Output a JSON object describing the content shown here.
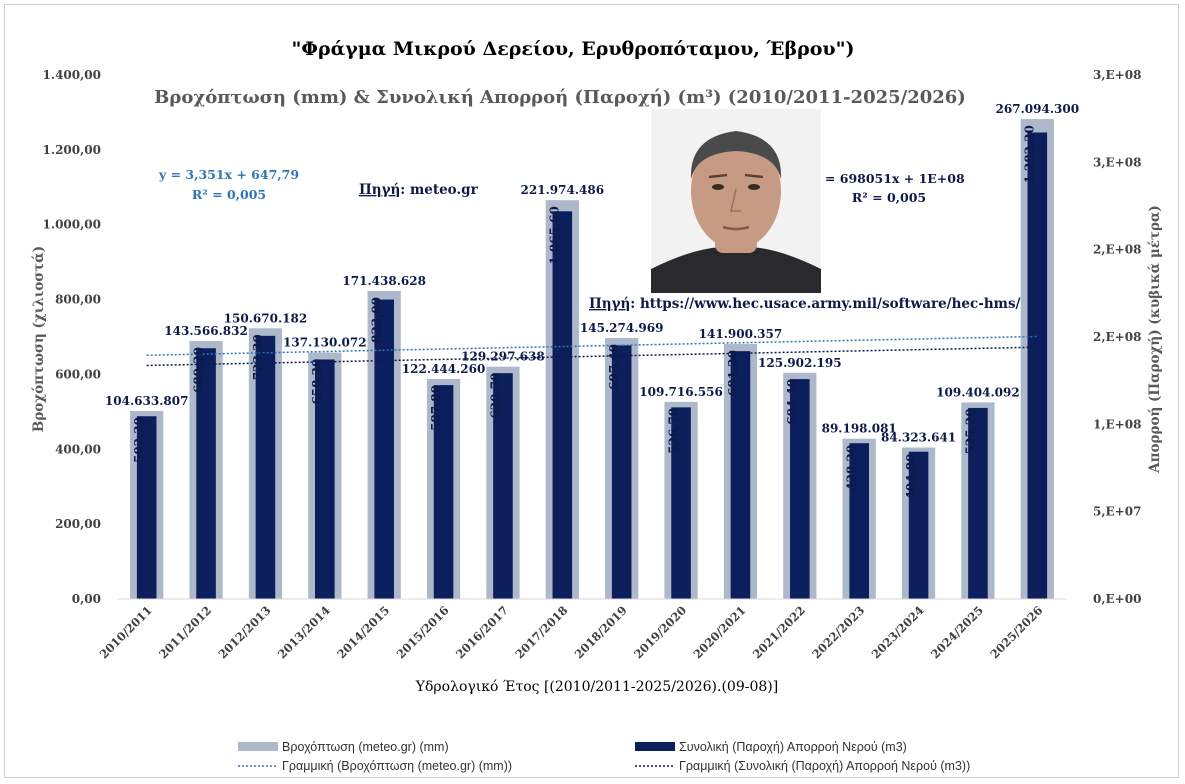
{
  "chart_data": {
    "type": "bar",
    "title": "\"Φράγμα Μικρού Δερείου, Ερυθροπόταμου, Έβρου\")",
    "subtitle": "Βροχόπτωση (mm) & Συνολική Απορροή (Παροχή) (m³) (2010/2011-2025/2026)",
    "xlabel": "Υδρολογικό Έτος [(2010/2011-2025/2026).(09-08)]",
    "ylabel_left": "Βροχόπτωση (χιλιοστά)",
    "ylabel_right": "Απορροή (Παροχή) (κυβικά μέτρα)",
    "ylim_left": [
      0,
      1400
    ],
    "ylim_right": [
      0,
      300000000
    ],
    "yticks_left": [
      "0,00",
      "200,00",
      "400,00",
      "600,00",
      "800,00",
      "1.000,00",
      "1.200,00",
      "1.400,00"
    ],
    "yticks_right": [
      "0,E+00",
      "5,E+07",
      "1,E+08",
      "2,E+08",
      "2,E+08",
      "3,E+08",
      "3,E+08"
    ],
    "categories": [
      "2010/2011",
      "2011/2012",
      "2012/2013",
      "2013/2014",
      "2014/2015",
      "2015/2016",
      "2016/2017",
      "2017/2018",
      "2018/2019",
      "2019/2020",
      "2020/2021",
      "2021/2022",
      "2022/2023",
      "2023/2024",
      "2024/2025",
      "2025/2026"
    ],
    "series": [
      {
        "name": "Βροχόπτωση (meteo.gr) (mm)",
        "axis": "left",
        "color": "#adb9ca",
        "values": [
          502.3,
          689.2,
          723.3,
          658.3,
          823.0,
          587.8,
          620.7,
          1065.6,
          697.4,
          526.7,
          681.2,
          604.4,
          428.2,
          404.8,
          525.2,
          1282.2
        ],
        "labels": [
          "502,30",
          "689,20",
          "723,30",
          "658,30",
          "823,00",
          "587,80",
          "620,70",
          "1.065,60",
          "697,40",
          "526,70",
          "681,20",
          "604,40",
          "428,20",
          "404,80",
          "525,20",
          "1.282,20"
        ]
      },
      {
        "name": "Συνολική (Παροχή) Απορροή Νερού (m3)",
        "axis": "right",
        "color": "#0c1f5c",
        "values": [
          104633807,
          143566832,
          150670182,
          137130072,
          171438628,
          122444260,
          129297638,
          221974486,
          145274969,
          109716556,
          141900357,
          125902195,
          89198081,
          84323641,
          109404092,
          267094300
        ],
        "labels": [
          "104.633.807",
          "143.566.832",
          "150.670.182",
          "137.130.072",
          "171.438.628",
          "122.444.260",
          "129.297.638",
          "221.974.486",
          "145.274.969",
          "109.716.556",
          "141.900.357",
          "125.902.195",
          "89.198.081",
          "84.323.641",
          "109.404.092",
          "267.094.300"
        ]
      }
    ],
    "trendlines": [
      {
        "name": "Γραμμική (Βροχόπτωση (meteo.gr) (mm))",
        "axis": "left",
        "color": "#2e75b6",
        "equation": "y = 3,351x + 647,79",
        "r2": "R² = 0,005",
        "slope": 3.351,
        "intercept": 647.79
      },
      {
        "name": "Γραμμική (Συνολική (Παροχή) Απορροή Νερού (m3))",
        "axis": "right",
        "color": "#0c1a4a",
        "equation": "y = 698051x + 1E+08",
        "r2": "R² = 0,005",
        "slope": 698051,
        "intercept": 133000000
      }
    ],
    "annotations": {
      "source_1_label": "Πηγή",
      "source_1_text": ": meteo.gr",
      "source_2_label": "Πηγή",
      "source_2_text": ": https://www.hec.usace.army.mil/software/hec-hms/"
    },
    "legend_position": "bottom",
    "grid": false
  },
  "portrait": {
    "background": "#f2f2f2",
    "skin": "#c79a84",
    "hair": "#4a4a4a",
    "shirt": "#2a2a2e"
  }
}
